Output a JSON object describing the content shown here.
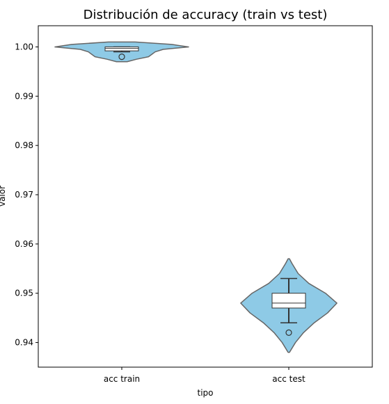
{
  "chart_data": {
    "type": "violin",
    "title": "Distribución de accuracy (train vs test)",
    "xlabel": "tipo",
    "ylabel": "valor",
    "categories": [
      "acc train",
      "acc test"
    ],
    "yticks": [
      "0.94",
      "0.95",
      "0.96",
      "0.97",
      "0.98",
      "0.99",
      "1.00"
    ],
    "ylim": [
      0.935,
      1.0043
    ],
    "grid": false,
    "colors": {
      "violin_fill": "#8ecae6",
      "violin_edge": "#666666",
      "box_fill": "#ffffff",
      "box_edge": "#333333"
    },
    "series": [
      {
        "category": "acc train",
        "violin_y_min": 0.997,
        "violin_y_max": 1.001,
        "density_profile": [
          [
            0.997,
            0.08
          ],
          [
            0.9975,
            0.22
          ],
          [
            0.998,
            0.4
          ],
          [
            0.9985,
            0.45
          ],
          [
            0.999,
            0.5
          ],
          [
            0.9995,
            0.62
          ],
          [
            1.0,
            1.0
          ],
          [
            1.0005,
            0.75
          ],
          [
            1.001,
            0.2
          ]
        ],
        "q1": 0.9992,
        "median": 0.9997,
        "q3": 1.0,
        "whisker_low": 0.999,
        "whisker_high": 1.0,
        "outliers": [
          0.998
        ]
      },
      {
        "category": "acc test",
        "violin_y_min": 0.938,
        "violin_y_max": 0.957,
        "density_profile": [
          [
            0.938,
            0.01
          ],
          [
            0.94,
            0.1
          ],
          [
            0.942,
            0.22
          ],
          [
            0.944,
            0.38
          ],
          [
            0.946,
            0.58
          ],
          [
            0.948,
            0.72
          ],
          [
            0.95,
            0.55
          ],
          [
            0.952,
            0.3
          ],
          [
            0.954,
            0.14
          ],
          [
            0.956,
            0.05
          ],
          [
            0.957,
            0.01
          ]
        ],
        "q1": 0.947,
        "median": 0.948,
        "q3": 0.95,
        "whisker_low": 0.944,
        "whisker_high": 0.953,
        "outliers": [
          0.942
        ]
      }
    ]
  }
}
